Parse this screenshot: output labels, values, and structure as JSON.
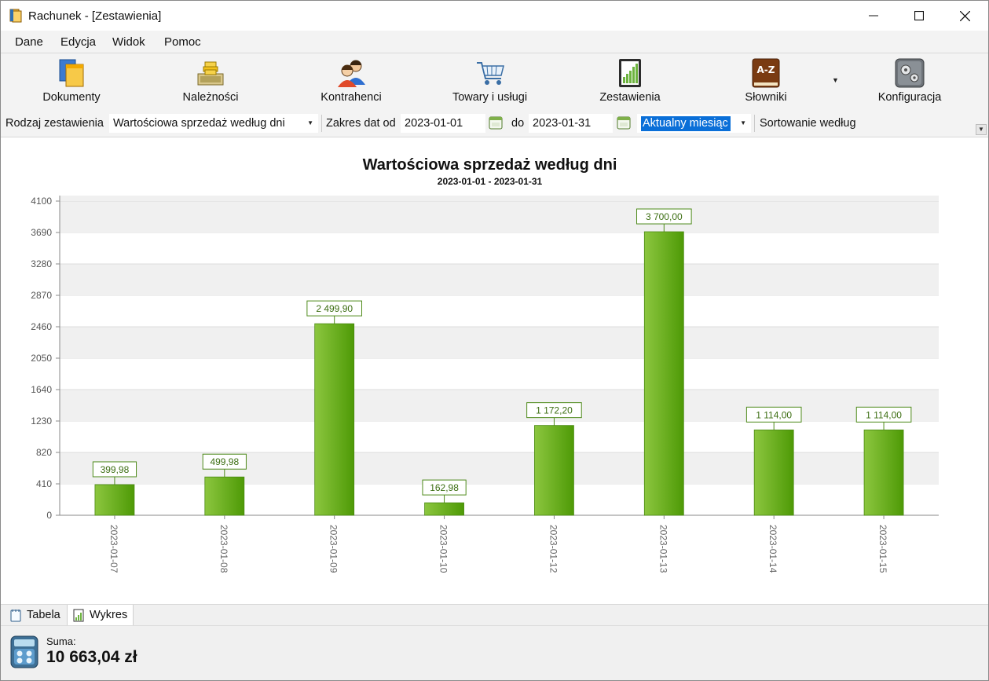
{
  "window": {
    "title": "Rachunek - [Zestawienia]",
    "buttons": {
      "minimize": "minimize-icon",
      "maximize": "maximize-icon",
      "close": "close-icon"
    }
  },
  "menu": [
    "Dane",
    "Edycja",
    "Widok",
    "Pomoc"
  ],
  "toolbar": {
    "items": [
      {
        "label": "Dokumenty",
        "icon": "documents-icon"
      },
      {
        "label": "Należności",
        "icon": "receivables-icon"
      },
      {
        "label": "Kontrahenci",
        "icon": "contractors-icon"
      },
      {
        "label": "Towary i usługi",
        "icon": "cart-icon"
      },
      {
        "label": "Zestawienia",
        "icon": "report-chart-icon"
      },
      {
        "label": "Słowniki",
        "icon": "dictionary-icon"
      },
      {
        "label": "Konfiguracja",
        "icon": "gears-icon"
      }
    ]
  },
  "filters": {
    "report_type_label": "Rodzaj zestawienia",
    "report_type_value": "Wartościowa sprzedaż według dni",
    "date_range_label": "Zakres dat od",
    "date_from": "2023-01-01",
    "date_to_label": "do",
    "date_to": "2023-01-31",
    "period_value": "Aktualny miesiąc",
    "sort_label": "Sortowanie według"
  },
  "chart_data": {
    "type": "bar",
    "title": "Wartościowa sprzedaż według dni",
    "subtitle": "2023-01-01 - 2023-01-31",
    "categories": [
      "2023-01-07",
      "2023-01-08",
      "2023-01-09",
      "2023-01-10",
      "2023-01-12",
      "2023-01-13",
      "2023-01-14",
      "2023-01-15"
    ],
    "values": [
      399.98,
      499.98,
      2499.9,
      162.98,
      1172.2,
      3700.0,
      1114.0,
      1114.0
    ],
    "value_labels": [
      "399,98",
      "499,98",
      "2 499,90",
      "162,98",
      "1 172,20",
      "3 700,00",
      "1 114,00",
      "1 114,00"
    ],
    "yticks": [
      0,
      410,
      820,
      1230,
      1640,
      2050,
      2460,
      2870,
      3280,
      3690,
      4100
    ],
    "ylim": [
      0,
      4100
    ],
    "grid": "horizontal-bands",
    "colors": {
      "bar_light": "#8cc63f",
      "bar_dark": "#4e9a06",
      "label_border": "#4e8a1a",
      "label_text": "#3c6e12",
      "band": "#f0f0f0"
    }
  },
  "tabs": [
    {
      "label": "Tabela",
      "icon": "notepad-icon"
    },
    {
      "label": "Wykres",
      "icon": "chart-icon"
    }
  ],
  "status": {
    "sum_label": "Suma:",
    "sum_value": "10 663,04 zł"
  }
}
